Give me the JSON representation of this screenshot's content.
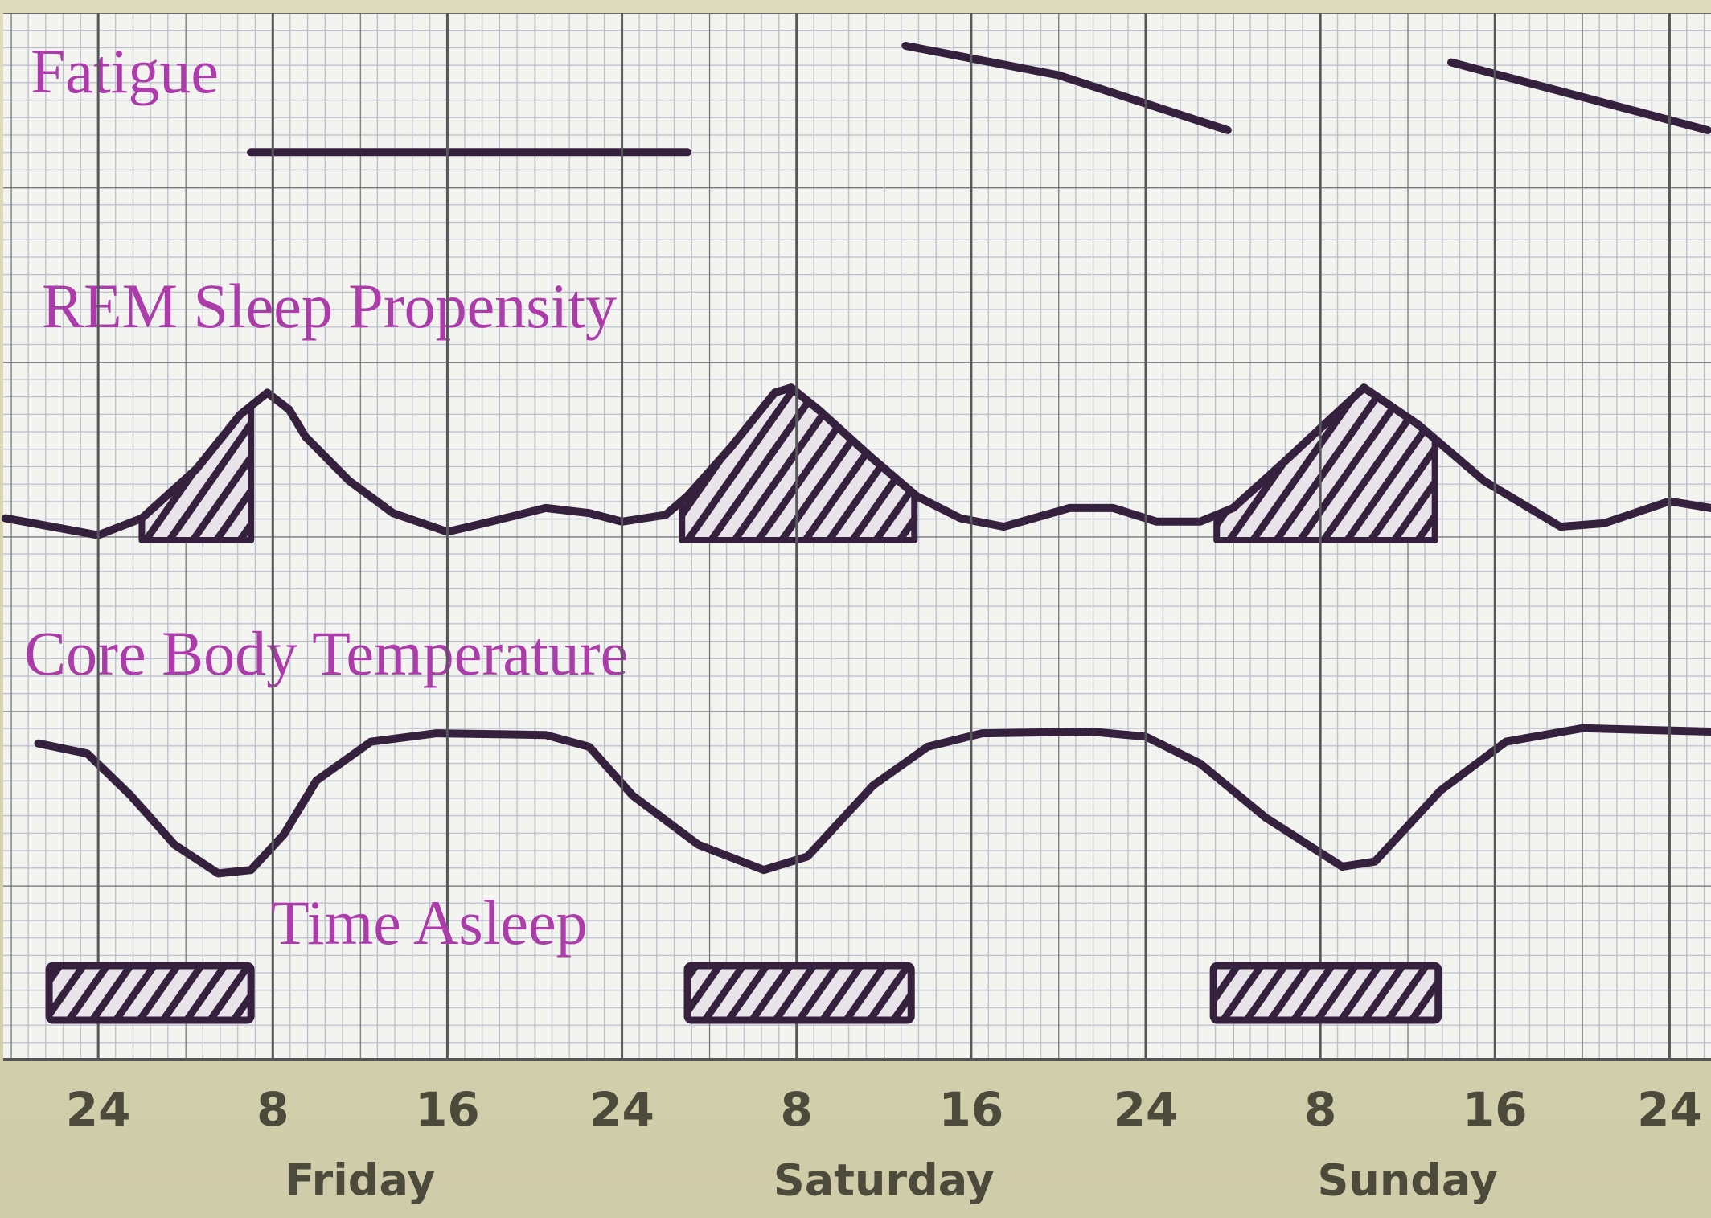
{
  "chart_data": [
    {
      "type": "line",
      "title": "Fatigue",
      "color": "#35213d",
      "xlim": [
        -4.5,
        73.9
      ],
      "ylim": [
        0,
        10
      ],
      "x": [
        7,
        27,
        28,
        37,
        44,
        51.75,
        52,
        62,
        73.75
      ],
      "values": [
        2.4,
        2.4,
        null,
        8.2,
        6.6,
        3.6,
        null,
        7.3,
        3.6
      ]
    },
    {
      "type": "line",
      "title": "REM Sleep Propensity",
      "color": "#35213d",
      "xlim": [
        -4.5,
        73.9
      ],
      "ylim": [
        0,
        10
      ],
      "x": [
        -4.25,
        0,
        2,
        4.5,
        6.5,
        7.75,
        8.75,
        9.5,
        11.5,
        13.5,
        16,
        18,
        20.5,
        22.5,
        24,
        26,
        27,
        29,
        31,
        31.75,
        33,
        35.5,
        37.5,
        39.5,
        41.5,
        44.5,
        46.5,
        48.5,
        50.5,
        52,
        54.5,
        58,
        60.5,
        63.5,
        67,
        69,
        72,
        73.9
      ],
      "values": [
        1.3,
        0.3,
        1.3,
        4.2,
        7.4,
        8.7,
        7.7,
        6.1,
        3.5,
        1.6,
        0.5,
        1.1,
        1.9,
        1.6,
        1.1,
        1.5,
        2.6,
        5.5,
        8.7,
        9.0,
        7.7,
        4.8,
        2.6,
        1.3,
        0.8,
        1.9,
        1.9,
        1.1,
        1.1,
        1.9,
        4.8,
        9.0,
        6.8,
        3.5,
        0.8,
        1.0,
        2.3,
        1.9
      ],
      "shaded": [
        [
          2,
          7
        ],
        [
          26.75,
          37.4
        ],
        [
          51.25,
          61.25
        ]
      ]
    },
    {
      "type": "line",
      "title": "Core Body Temperature",
      "color": "#35213d",
      "xlim": [
        -4.5,
        73.9
      ],
      "ylim": [
        0,
        10
      ],
      "x": [
        -2.75,
        -0.5,
        1.5,
        3.5,
        5.5,
        7,
        8.5,
        10,
        12.5,
        15.5,
        20.5,
        22.5,
        24.5,
        27.5,
        30.5,
        32.5,
        35.5,
        38,
        40.5,
        45.5,
        48,
        50.5,
        53.5,
        57,
        58.5,
        61.5,
        64.5,
        68,
        73.9
      ],
      "values": [
        8.3,
        7.7,
        5.2,
        2.3,
        0.6,
        0.8,
        2.9,
        6.1,
        8.4,
        8.9,
        8.8,
        8.1,
        5.2,
        2.3,
        0.8,
        1.6,
        5.8,
        8.1,
        8.9,
        9.0,
        8.7,
        7.1,
        3.9,
        1.0,
        1.3,
        5.5,
        8.4,
        9.2,
        9.0
      ]
    },
    {
      "type": "range",
      "title": "Time Asleep",
      "color": "#35213d",
      "xlim": [
        -4.5,
        73.9
      ],
      "ranges": [
        [
          -2.25,
          7
        ],
        [
          27,
          37.25
        ],
        [
          51.1,
          61.4
        ]
      ],
      "xticks": [
        {
          "value": 0,
          "label": "24"
        },
        8,
        16,
        24,
        {
          "value": 32,
          "label": "8"
        },
        {
          "value": 40,
          "label": "16"
        },
        {
          "value": 48,
          "label": "24"
        },
        {
          "value": 56,
          "label": "8"
        },
        {
          "value": 64,
          "label": "16"
        },
        {
          "value": 72,
          "label": "24"
        }
      ],
      "days": [
        "Friday",
        "Saturday",
        "Sunday"
      ],
      "grid": true
    }
  ]
}
